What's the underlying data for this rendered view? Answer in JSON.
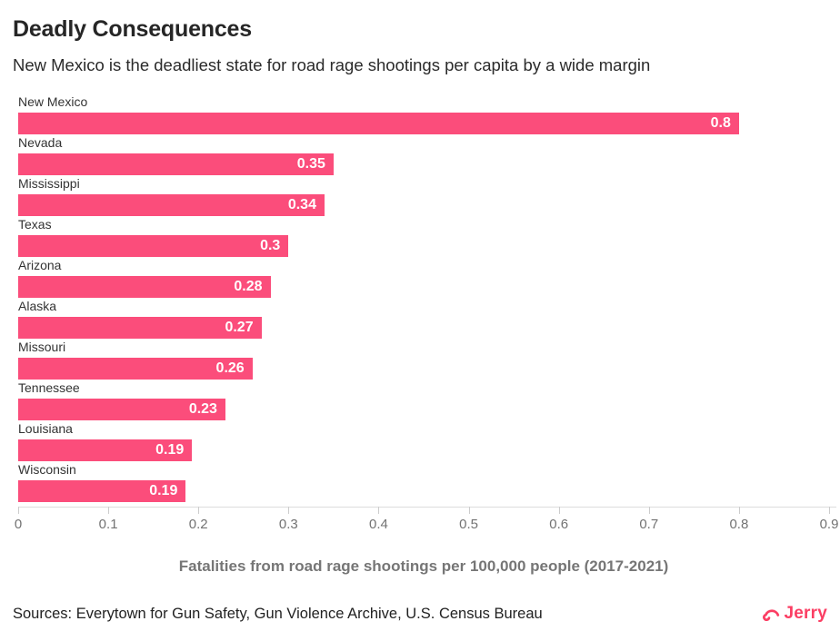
{
  "header": {
    "title": "Deadly Consequences",
    "subtitle": "New Mexico is the deadliest state for road rage shootings per capita by a wide margin"
  },
  "chart_data": {
    "type": "bar",
    "orientation": "horizontal",
    "categories": [
      "New Mexico",
      "Nevada",
      "Mississippi",
      "Texas",
      "Arizona",
      "Alaska",
      "Missouri",
      "Tennessee",
      "Louisiana",
      "Wisconsin"
    ],
    "values": [
      0.8,
      0.35,
      0.34,
      0.3,
      0.28,
      0.27,
      0.26,
      0.23,
      0.193,
      0.186
    ],
    "value_labels": [
      "0.8",
      "0.35",
      "0.34",
      "0.3",
      "0.28",
      "0.27",
      "0.26",
      "0.23",
      "0.19",
      "0.19"
    ],
    "xlabel": "Fatalities from road rage shootings per 100,000 people (2017-2021)",
    "xlim": [
      0,
      0.9
    ],
    "x_ticks": [
      "0",
      "0.1",
      "0.2",
      "0.3",
      "0.4",
      "0.5",
      "0.6",
      "0.7",
      "0.8",
      "0.9"
    ],
    "grid": false,
    "legend": "none",
    "bar_color": "#fb4d7b",
    "value_label_color": "#ffffff",
    "axis_color": "#dddddd",
    "tick_label_color": "#737373"
  },
  "footer": {
    "sources": "Sources: Everytown for Gun Safety, Gun Violence Archive, U.S. Census Bureau",
    "brand_name": "Jerry",
    "brand_color": "#fb3e63"
  }
}
